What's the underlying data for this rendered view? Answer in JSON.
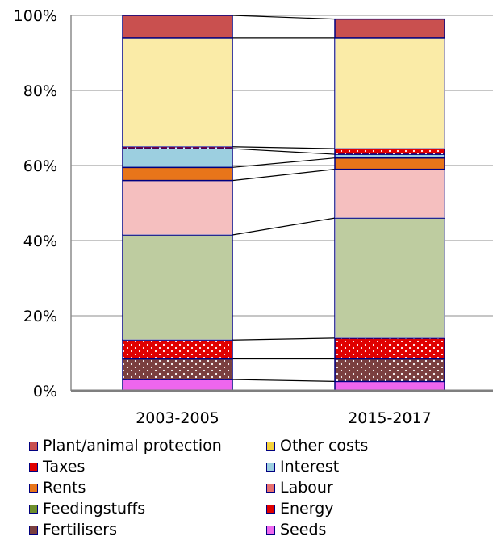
{
  "chart_data": {
    "type": "bar",
    "stacked": true,
    "normalized": true,
    "categories": [
      "2003-2005",
      "2015-2017"
    ],
    "yticks": [
      "0%",
      "20%",
      "40%",
      "60%",
      "80%",
      "100%"
    ],
    "ylim": [
      0,
      100
    ],
    "grid": true,
    "legend_position": "bottom",
    "series": [
      {
        "name": "Seeds",
        "values": [
          3.0,
          2.5
        ],
        "color": "#ee66ee",
        "pattern": "solid"
      },
      {
        "name": "Fertilisers",
        "values": [
          5.5,
          6.0
        ],
        "color": "#7a3f3f",
        "pattern": "dots"
      },
      {
        "name": "Energy",
        "values": [
          5.0,
          5.5
        ],
        "color": "#e00000",
        "pattern": "dots"
      },
      {
        "name": "Feedingstuffs",
        "values": [
          28.0,
          32.0
        ],
        "color": "#6e8f2c",
        "pattern": "checker"
      },
      {
        "name": "Labour",
        "values": [
          14.5,
          13.0
        ],
        "color": "#e87070",
        "pattern": "checker"
      },
      {
        "name": "Rents",
        "values": [
          3.5,
          3.0
        ],
        "color": "#e8751a",
        "pattern": "solid"
      },
      {
        "name": "Interest",
        "values": [
          5.0,
          1.0
        ],
        "color": "#9ccfe0",
        "pattern": "solid"
      },
      {
        "name": "Taxes",
        "values": [
          0.5,
          1.5
        ],
        "color": "#e00000",
        "pattern": "dots"
      },
      {
        "name": "Other costs",
        "values": [
          29.0,
          29.5
        ],
        "color": "#f5d23c",
        "pattern": "checker"
      },
      {
        "name": "Plant/animal protection",
        "values": [
          6.0,
          5.0
        ],
        "color": "#c9504f",
        "pattern": "solid"
      }
    ]
  },
  "legend": [
    {
      "label": "Plant/animal protection",
      "color": "#c9504f"
    },
    {
      "label": "Other costs",
      "color": "#f5d23c"
    },
    {
      "label": "Taxes",
      "color": "#e00000"
    },
    {
      "label": "Interest",
      "color": "#9ccfe0"
    },
    {
      "label": "Rents",
      "color": "#e8751a"
    },
    {
      "label": "Labour",
      "color": "#e87070"
    },
    {
      "label": "Feedingstuffs",
      "color": "#6e8f2c"
    },
    {
      "label": "Energy",
      "color": "#e00000"
    },
    {
      "label": "Fertilisers",
      "color": "#7a3f3f"
    },
    {
      "label": "Seeds",
      "color": "#ee66ee"
    }
  ]
}
